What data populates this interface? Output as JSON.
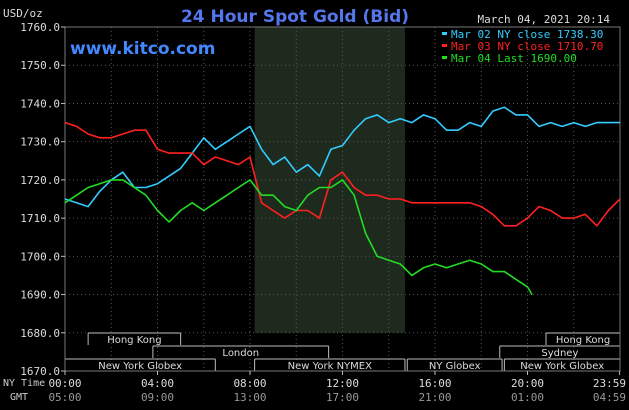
{
  "chart_data": {
    "type": "line",
    "title": "24 Hour Spot Gold (Bid)",
    "watermark": "www.kitco.com",
    "ylabel": "USD/oz",
    "timestamp": "March 04, 2021 20:14",
    "ylim": [
      1670,
      1760
    ],
    "yticks": [
      "1760.0",
      "1750.0",
      "1740.0",
      "1730.0",
      "1720.0",
      "1710.0",
      "1700.0",
      "1690.0",
      "1680.0",
      "1670.0"
    ],
    "ytick_values": [
      1760,
      1750,
      1740,
      1730,
      1720,
      1710,
      1700,
      1690,
      1680,
      1670
    ],
    "x_axis_labels": {
      "ny": "NY Time",
      "gmt": "GMT"
    },
    "x_ticks_ny": [
      "00:00",
      "04:00",
      "08:00",
      "12:00",
      "16:00",
      "20:00",
      "23:59"
    ],
    "x_ticks_gmt": [
      "05:00",
      "09:00",
      "13:00",
      "17:00",
      "21:00",
      "01:00",
      "04:59"
    ],
    "x_tick_hours": [
      0,
      4,
      8,
      12,
      16,
      20,
      23.983
    ],
    "shaded_hours": [
      8.2,
      14.7
    ],
    "grid": true,
    "legend_position": "top-right",
    "sessions_row1": [
      {
        "label": "Hong Kong",
        "start": 1.0,
        "end": 5.0
      },
      {
        "label": "Hong Kong",
        "start": 20.8,
        "end": 24.0
      }
    ],
    "sessions_row2": [
      {
        "label": "London",
        "start": 3.8,
        "end": 11.4
      },
      {
        "label": "Sydney",
        "start": 18.8,
        "end": 24.0
      }
    ],
    "sessions_row3": [
      {
        "label": "New York Globex",
        "start": 0.0,
        "end": 6.5
      },
      {
        "label": "New York NYMEX",
        "start": 8.2,
        "end": 14.7
      },
      {
        "label": "NY Globex",
        "start": 14.8,
        "end": 18.9
      },
      {
        "label": "New York Globex",
        "start": 19.0,
        "end": 24.0
      }
    ],
    "series": [
      {
        "name": "Mar 02 NY close 1738.30",
        "color": "#33ccff",
        "x": [
          0,
          0.5,
          1,
          1.5,
          2,
          2.5,
          3,
          3.5,
          4,
          4.5,
          5,
          5.5,
          6,
          6.5,
          7,
          7.5,
          8,
          8.5,
          9,
          9.5,
          10,
          10.5,
          11,
          11.5,
          12,
          12.5,
          13,
          13.5,
          14,
          14.5,
          15,
          15.5,
          16,
          16.5,
          17,
          17.5,
          18,
          18.5,
          19,
          19.5,
          20,
          20.5,
          21,
          21.5,
          22,
          22.5,
          23,
          23.5,
          24
        ],
        "values": [
          1715,
          1714,
          1713,
          1717,
          1720,
          1722,
          1718,
          1718,
          1719,
          1721,
          1723,
          1727,
          1731,
          1728,
          1730,
          1732,
          1734,
          1728,
          1724,
          1726,
          1722,
          1724,
          1721,
          1728,
          1729,
          1733,
          1736,
          1737,
          1735,
          1736,
          1735,
          1737,
          1736,
          1733,
          1733,
          1735,
          1734,
          1738,
          1739,
          1737,
          1737,
          1734,
          1735,
          1734,
          1735,
          1734,
          1735,
          1735,
          1735
        ]
      },
      {
        "name": "Mar 03 NY close 1710.70",
        "color": "#ff2020",
        "x": [
          0,
          0.5,
          1,
          1.5,
          2,
          2.5,
          3,
          3.5,
          4,
          4.5,
          5,
          5.5,
          6,
          6.5,
          7,
          7.5,
          8,
          8.5,
          9,
          9.5,
          10,
          10.5,
          11,
          11.5,
          12,
          12.5,
          13,
          13.5,
          14,
          14.5,
          15,
          15.5,
          16,
          16.5,
          17,
          17.5,
          18,
          18.5,
          19,
          19.5,
          20,
          20.5,
          21,
          21.5,
          22,
          22.5,
          23,
          23.5,
          24
        ],
        "values": [
          1735,
          1734,
          1732,
          1731,
          1731,
          1732,
          1733,
          1733,
          1728,
          1727,
          1727,
          1727,
          1724,
          1726,
          1725,
          1724,
          1726,
          1714,
          1712,
          1710,
          1712,
          1712,
          1710,
          1720,
          1722,
          1718,
          1716,
          1716,
          1715,
          1715,
          1714,
          1714,
          1714,
          1714,
          1714,
          1714,
          1713,
          1711,
          1708,
          1708,
          1710,
          1713,
          1712,
          1710,
          1710,
          1711,
          1708,
          1712,
          1715
        ]
      },
      {
        "name": "Mar 04 Last 1690.00",
        "color": "#22dd22",
        "x": [
          0,
          0.5,
          1,
          1.5,
          2,
          2.5,
          3,
          3.5,
          4,
          4.5,
          5,
          5.5,
          6,
          6.5,
          7,
          7.5,
          8,
          8.5,
          9,
          9.5,
          10,
          10.5,
          11,
          11.5,
          12,
          12.5,
          13,
          13.5,
          14,
          14.5,
          15,
          15.5,
          16,
          16.5,
          17,
          17.5,
          18,
          18.5,
          19,
          19.5,
          20,
          20.2
        ],
        "values": [
          1714,
          1716,
          1718,
          1719,
          1720,
          1720,
          1718,
          1716,
          1712,
          1709,
          1712,
          1714,
          1712,
          1714,
          1716,
          1718,
          1720,
          1716,
          1716,
          1713,
          1712,
          1716,
          1718,
          1718,
          1720,
          1716,
          1706,
          1700,
          1699,
          1698,
          1695,
          1697,
          1698,
          1697,
          1698,
          1699,
          1698,
          1696,
          1696,
          1694,
          1692,
          1690
        ]
      }
    ]
  }
}
